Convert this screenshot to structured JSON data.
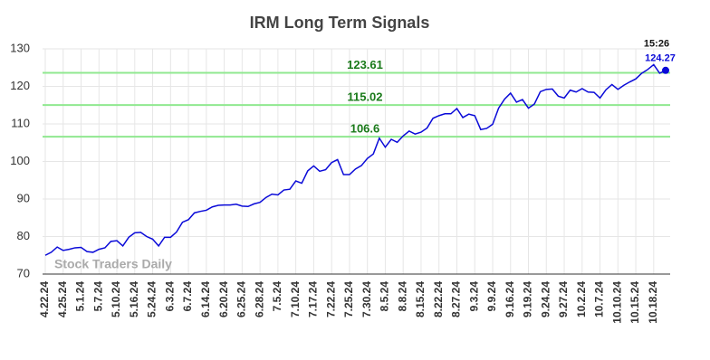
{
  "chart_data": {
    "type": "line",
    "title": "IRM Long Term Signals",
    "categories": [
      "4.22.24",
      null,
      null,
      "4.25.24",
      null,
      null,
      "5.1.24",
      null,
      null,
      "5.7.24",
      null,
      null,
      "5.10.24",
      null,
      null,
      "5.16.24",
      null,
      null,
      "5.24.24",
      null,
      null,
      "6.3.24",
      null,
      null,
      "6.7.24",
      null,
      null,
      "6.14.24",
      null,
      null,
      "6.20.24",
      null,
      null,
      "6.25.24",
      null,
      null,
      "6.28.24",
      null,
      null,
      "7.5.24",
      null,
      null,
      "7.10.24",
      null,
      null,
      "7.17.24",
      null,
      null,
      "7.22.24",
      null,
      null,
      "7.25.24",
      null,
      null,
      "7.30.24",
      null,
      null,
      "8.5.24",
      null,
      null,
      "8.8.24",
      null,
      null,
      "8.15.24",
      null,
      null,
      "8.22.24",
      null,
      null,
      "8.27.24",
      null,
      null,
      "9.3.24",
      null,
      null,
      "9.9.24",
      null,
      null,
      "9.16.24",
      null,
      null,
      "9.19.24",
      null,
      null,
      "9.24.24",
      null,
      null,
      "9.27.24",
      null,
      null,
      "10.2.24",
      null,
      null,
      "10.7.24",
      null,
      null,
      "10.10.24",
      null,
      null,
      "10.15.24",
      null,
      null,
      "10.18.24",
      null,
      null
    ],
    "series": [
      {
        "color": "#0a0ad8",
        "values": [
          75.0,
          75.8,
          77.2,
          76.3,
          76.6,
          77.0,
          77.1,
          76.0,
          75.8,
          76.6,
          77.0,
          78.7,
          78.9,
          77.5,
          79.8,
          81.0,
          81.1,
          80.0,
          79.3,
          77.5,
          79.8,
          79.8,
          81.2,
          83.8,
          84.5,
          86.3,
          86.7,
          87.0,
          87.9,
          88.3,
          88.4,
          88.4,
          88.6,
          88.1,
          88.0,
          88.7,
          89.1,
          90.4,
          91.3,
          91.1,
          92.4,
          92.6,
          94.8,
          94.2,
          97.5,
          98.8,
          97.4,
          97.8,
          99.7,
          100.5,
          96.5,
          96.5,
          98.0,
          98.9,
          100.8,
          102.0,
          106.2,
          103.8,
          105.9,
          105.1,
          106.8,
          108.1,
          107.3,
          107.8,
          108.9,
          111.5,
          112.2,
          112.7,
          112.7,
          114.1,
          111.7,
          112.6,
          112.2,
          108.5,
          108.8,
          109.9,
          114.2,
          116.6,
          118.2,
          115.8,
          116.5,
          114.2,
          115.3,
          118.6,
          119.2,
          119.3,
          117.4,
          116.9,
          119.0,
          118.5,
          119.4,
          118.5,
          118.4,
          116.9,
          119.1,
          120.5,
          119.2,
          120.3,
          121.2,
          122.0,
          123.5,
          124.5,
          125.8,
          123.5,
          124.27
        ]
      }
    ],
    "last_time": "15:26",
    "hlines": [
      {
        "value": 123.61,
        "color": "#90e890",
        "label_color": "#1a7a1a"
      },
      {
        "value": 115.02,
        "color": "#90e890",
        "label_color": "#1a7a1a"
      },
      {
        "value": 106.6,
        "color": "#90e890",
        "label_color": "#1a7a1a"
      }
    ],
    "watermark": "Stock Traders Daily",
    "ylim": [
      70,
      130
    ],
    "yticks": [
      70,
      80,
      90,
      100,
      110,
      120,
      130
    ],
    "grid": true
  }
}
